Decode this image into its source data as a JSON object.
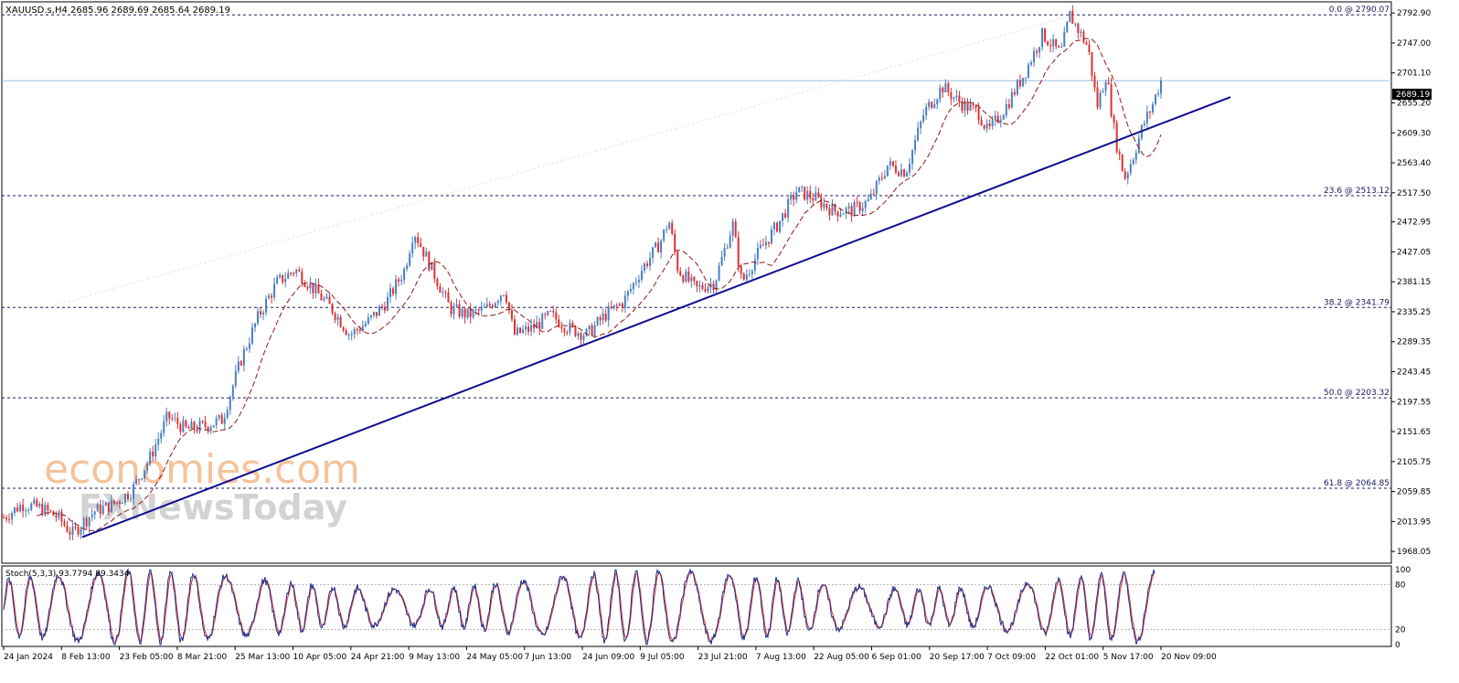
{
  "chart_data": [
    {
      "type": "candlestick",
      "symbol_header": "XAUUSD.s,H4  2685.96 2689.69 2685.64 2689.19",
      "last_price_label": "2689.19",
      "last_price": 2689.19,
      "ylim": [
        1950,
        2810
      ],
      "price_ticks": [
        "2792.90",
        "2747.00",
        "2701.10",
        "2655.20",
        "2609.30",
        "2563.40",
        "2517.50",
        "2472.95",
        "2427.05",
        "2381.15",
        "2335.25",
        "2289.35",
        "2243.45",
        "2197.55",
        "2151.65",
        "2105.75",
        "2059.85",
        "2013.95",
        "1968.05"
      ],
      "fibonacci_levels": [
        {
          "label": "0.0 @ 2790.07",
          "value": 2790.07
        },
        {
          "label": "23.6 @ 2513.12",
          "value": 2513.12
        },
        {
          "label": "38.2 @ 2341.79",
          "value": 2341.79
        },
        {
          "label": "50.0 @ 2203.32",
          "value": 2203.32
        },
        {
          "label": "61.8 @ 2064.85",
          "value": 2064.85
        }
      ],
      "trendline": {
        "from": {
          "bar": 0.17,
          "price": 1990
        },
        "to": {
          "bar": 1.0,
          "price": 2664
        }
      },
      "price_path_anchors": [
        [
          0,
          2020
        ],
        [
          0.02,
          2040
        ],
        [
          0.04,
          2035
        ],
        [
          0.06,
          2020
        ],
        [
          0.075,
          1995
        ],
        [
          0.1,
          2030
        ],
        [
          0.12,
          2040
        ],
        [
          0.14,
          2060
        ],
        [
          0.16,
          2110
        ],
        [
          0.18,
          2175
        ],
        [
          0.2,
          2155
        ],
        [
          0.22,
          2160
        ],
        [
          0.24,
          2170
        ],
        [
          0.26,
          2260
        ],
        [
          0.28,
          2330
        ],
        [
          0.3,
          2380
        ],
        [
          0.32,
          2400
        ],
        [
          0.34,
          2370
        ],
        [
          0.36,
          2340
        ],
        [
          0.38,
          2300
        ],
        [
          0.4,
          2320
        ],
        [
          0.42,
          2350
        ],
        [
          0.44,
          2400
        ],
        [
          0.45,
          2460
        ],
        [
          0.47,
          2400
        ],
        [
          0.49,
          2340
        ],
        [
          0.51,
          2330
        ],
        [
          0.53,
          2340
        ],
        [
          0.55,
          2370
        ],
        [
          0.56,
          2300
        ],
        [
          0.58,
          2310
        ],
        [
          0.6,
          2330
        ],
        [
          0.62,
          2310
        ],
        [
          0.64,
          2300
        ],
        [
          0.66,
          2330
        ],
        [
          0.68,
          2350
        ],
        [
          0.7,
          2400
        ],
        [
          0.72,
          2440
        ],
        [
          0.73,
          2475
        ],
        [
          0.74,
          2400
        ],
        [
          0.76,
          2370
        ],
        [
          0.78,
          2380
        ],
        [
          0.8,
          2470
        ],
        [
          0.81,
          2380
        ],
        [
          0.83,
          2430
        ],
        [
          0.85,
          2470
        ],
        [
          0.87,
          2520
        ],
        [
          0.89,
          2510
        ],
        [
          0.91,
          2490
        ],
        [
          0.93,
          2490
        ],
        [
          0.95,
          2505
        ],
        [
          0.97,
          2560
        ],
        [
          0.99,
          2550
        ],
        [
          1.01,
          2640
        ],
        [
          1.03,
          2680
        ],
        [
          1.05,
          2655
        ],
        [
          1.07,
          2640
        ],
        [
          1.08,
          2610
        ],
        [
          1.1,
          2650
        ],
        [
          1.12,
          2700
        ],
        [
          1.14,
          2760
        ],
        [
          1.16,
          2730
        ],
        [
          1.17,
          2790
        ],
        [
          1.19,
          2740
        ],
        [
          1.2,
          2650
        ],
        [
          1.21,
          2700
        ],
        [
          1.22,
          2600
        ],
        [
          1.23,
          2540
        ],
        [
          1.24,
          2575
        ],
        [
          1.25,
          2620
        ],
        [
          1.26,
          2650
        ],
        [
          1.27,
          2689
        ]
      ],
      "moving_average": "dashed"
    },
    {
      "type": "line",
      "indicator_label": "Stoch(5,3,3) 93.7794 89.3434",
      "stoch_main": 93.7794,
      "stoch_signal": 89.3434,
      "ylim": [
        0,
        100
      ],
      "levels_ticks": [
        "100",
        "80",
        "20",
        "0"
      ],
      "reference_levels": [
        80,
        20
      ]
    }
  ],
  "time_axis": [
    "24 Jan 2024",
    "8 Feb 13:00",
    "23 Feb 05:00",
    "8 Mar 21:00",
    "25 Mar 13:00",
    "10 Apr 05:00",
    "24 Apr 21:00",
    "9 May 13:00",
    "24 May 05:00",
    "7 Jun 13:00",
    "24 Jun 09:00",
    "9 Jul 05:00",
    "23 Jul 21:00",
    "7 Aug 13:00",
    "22 Aug 05:00",
    "6 Sep 01:00",
    "20 Sep 17:00",
    "7 Oct 09:00",
    "22 Oct 01:00",
    "5 Nov 17:00",
    "20 Nov 09:00"
  ],
  "watermark": {
    "line1": "economies.com",
    "line2": "FXNewsToday"
  },
  "colors": {
    "bull": "#4a7fc0",
    "bear": "#e03030",
    "ma": "#8b1a1a",
    "trendline": "#0c0c90",
    "fib": "#1a1a60",
    "stoch_main": "#1a2e8a",
    "stoch_signal": "#e03030",
    "watermark": "#f3b98a",
    "watermark2": "#d4d4d4"
  }
}
